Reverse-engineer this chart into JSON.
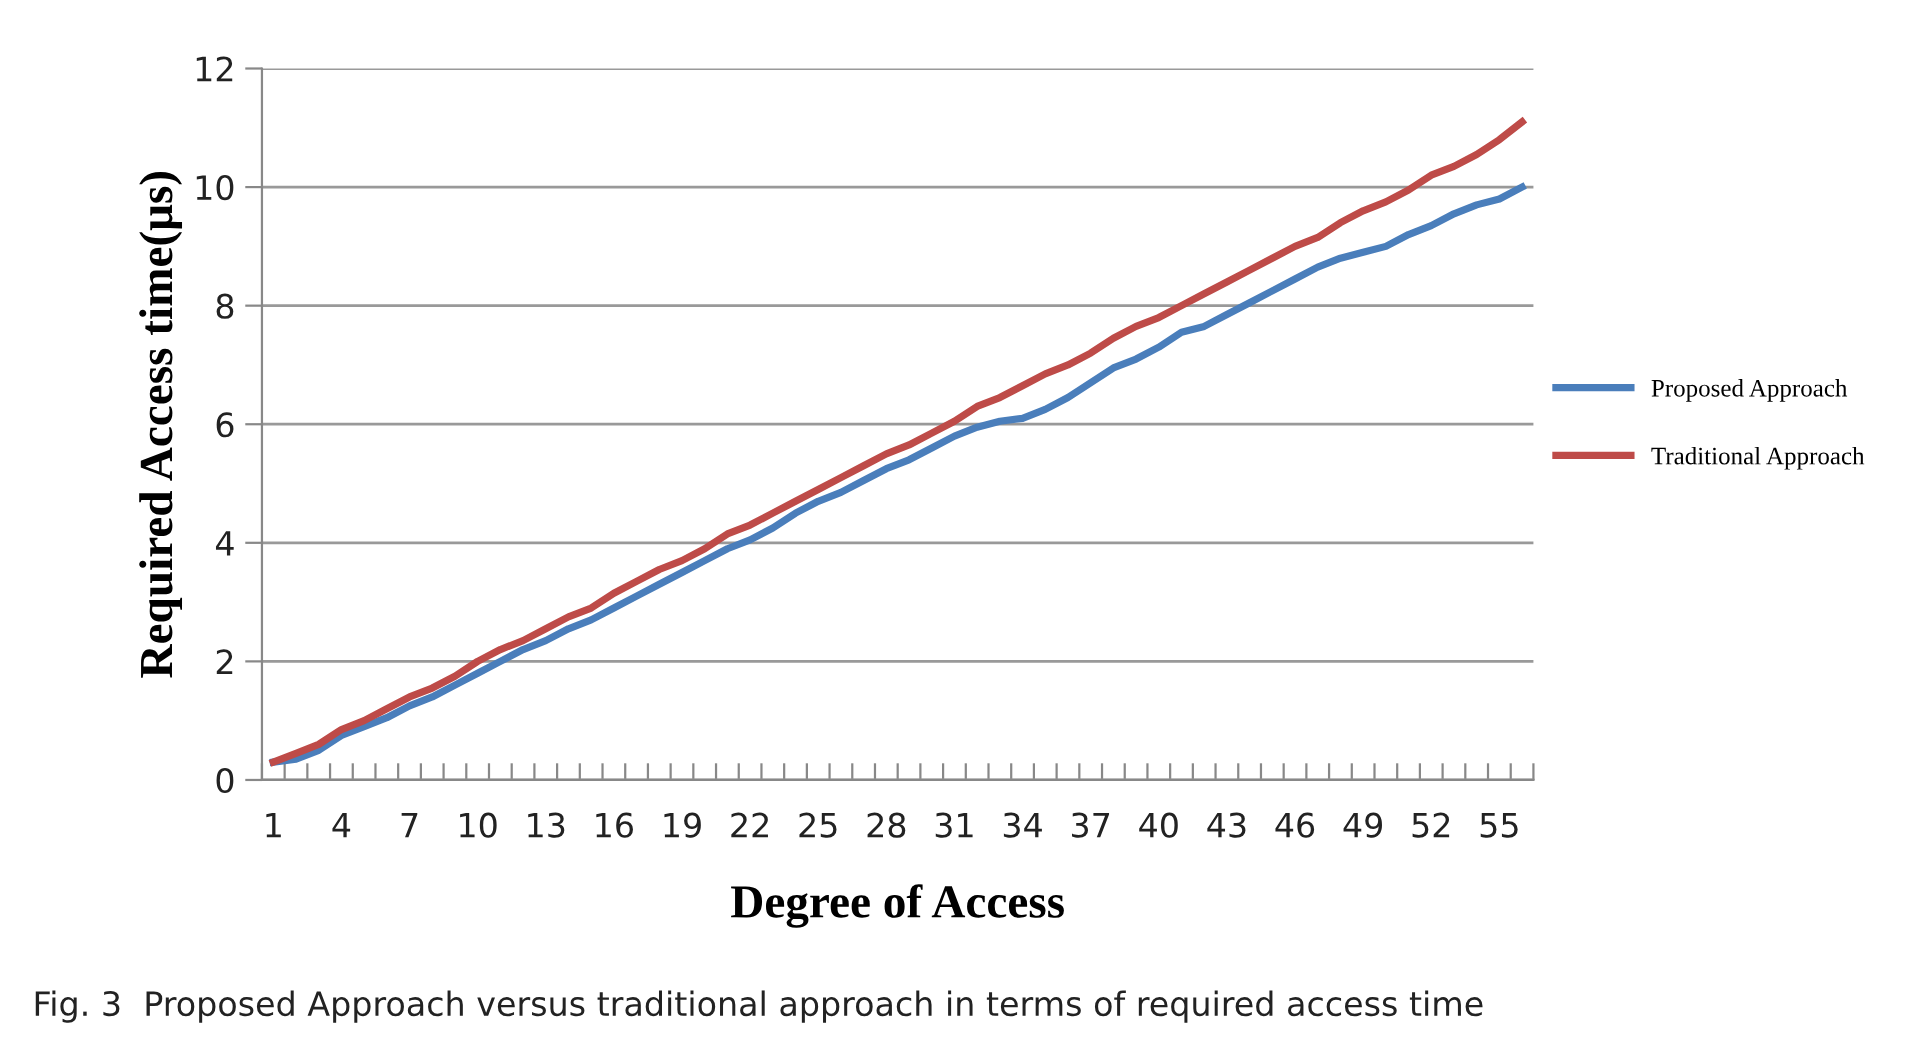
{
  "chart_data": {
    "type": "line",
    "xlabel": "Degree of Access",
    "ylabel": "Required Access time(μs)",
    "categories": [
      "1",
      null,
      null,
      "4",
      null,
      null,
      "7",
      null,
      null,
      "10",
      null,
      null,
      "13",
      null,
      null,
      "16",
      null,
      null,
      "19",
      null,
      null,
      "22",
      null,
      null,
      "25",
      null,
      null,
      "28",
      null,
      null,
      "31",
      null,
      null,
      "34",
      null,
      null,
      "37",
      null,
      null,
      "40",
      null,
      null,
      "43",
      null,
      null,
      "46",
      null,
      null,
      "49",
      null,
      null,
      "52",
      null,
      null,
      "55",
      null
    ],
    "series": [
      {
        "name": "Proposed Approach",
        "color": "#4a7ebb",
        "values": [
          0.3,
          0.35,
          0.5,
          0.75,
          0.9,
          1.05,
          1.25,
          1.4,
          1.6,
          1.8,
          2.0,
          2.2,
          2.35,
          2.55,
          2.7,
          2.9,
          3.1,
          3.3,
          3.5,
          3.7,
          3.9,
          4.05,
          4.25,
          4.5,
          4.7,
          4.85,
          5.05,
          5.25,
          5.4,
          5.6,
          5.8,
          5.95,
          6.05,
          6.1,
          6.25,
          6.45,
          6.7,
          6.95,
          7.1,
          7.3,
          7.55,
          7.65,
          7.85,
          8.05,
          8.25,
          8.45,
          8.65,
          8.8,
          8.9,
          9.0,
          9.2,
          9.35,
          9.55,
          9.7,
          9.8,
          10.0
        ]
      },
      {
        "name": "Traditional Approach",
        "color": "#be4b48",
        "values": [
          0.3,
          0.45,
          0.6,
          0.85,
          1.0,
          1.2,
          1.4,
          1.55,
          1.75,
          2.0,
          2.2,
          2.35,
          2.55,
          2.75,
          2.9,
          3.15,
          3.35,
          3.55,
          3.7,
          3.9,
          4.15,
          4.3,
          4.5,
          4.7,
          4.9,
          5.1,
          5.3,
          5.5,
          5.65,
          5.85,
          6.05,
          6.3,
          6.45,
          6.65,
          6.85,
          7.0,
          7.2,
          7.45,
          7.65,
          7.8,
          8.0,
          8.2,
          8.4,
          8.6,
          8.8,
          9.0,
          9.15,
          9.4,
          9.6,
          9.75,
          9.95,
          10.2,
          10.35,
          10.55,
          10.8,
          11.1
        ]
      }
    ],
    "ylim": [
      0,
      12
    ],
    "yticks": [
      0,
      2,
      4,
      6,
      8,
      10,
      12
    ],
    "grid": "y",
    "legend": "right",
    "marker": "none",
    "line_style": "solid",
    "annotations": [
      "Fig. 3  Proposed Approach versus traditional approach in terms of required access time"
    ]
  }
}
